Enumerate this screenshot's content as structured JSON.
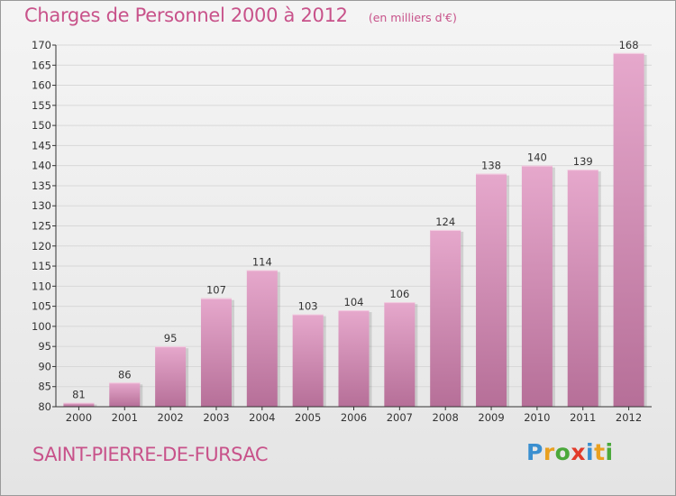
{
  "header": {
    "title": "Charges de Personnel 2000 à 2012",
    "subtitle": "(en milliers d'€)"
  },
  "footer": {
    "commune": "SAINT-PIERRE-DE-FURSAC",
    "logo": {
      "text": "Proxiti",
      "letters": [
        {
          "ch": "P",
          "color": "#3a8fd0"
        },
        {
          "ch": "r",
          "color": "#e9a020"
        },
        {
          "ch": "o",
          "color": "#4aa83a"
        },
        {
          "ch": "x",
          "color": "#e23a2a"
        },
        {
          "ch": "i",
          "color": "#3a8fd0"
        },
        {
          "ch": "t",
          "color": "#e9a020"
        },
        {
          "ch": "i",
          "color": "#4aa83a"
        }
      ]
    }
  },
  "colors": {
    "accent": "#c8528a",
    "bar_top": "#e6a8cc",
    "bar_bottom": "#b66f98",
    "grid": "#d8d8d8",
    "axis": "#333333"
  },
  "chart_data": {
    "type": "bar",
    "categories": [
      "2000",
      "2001",
      "2002",
      "2003",
      "2004",
      "2005",
      "2006",
      "2007",
      "2008",
      "2009",
      "2010",
      "2011",
      "2012"
    ],
    "values": [
      81,
      86,
      95,
      107,
      114,
      103,
      104,
      106,
      124,
      138,
      140,
      139,
      168
    ],
    "data_labels": [
      "81",
      "86",
      "95",
      "107",
      "114",
      "103",
      "104",
      "106",
      "124",
      "138",
      "140",
      "139",
      "168"
    ],
    "ylim": [
      80,
      170
    ],
    "ytick_step": 5,
    "yticks": [
      "80",
      "85",
      "90",
      "95",
      "100",
      "105",
      "110",
      "115",
      "120",
      "125",
      "130",
      "135",
      "140",
      "145",
      "150",
      "155",
      "160",
      "165",
      "170"
    ],
    "grid": true,
    "legend": "none"
  }
}
